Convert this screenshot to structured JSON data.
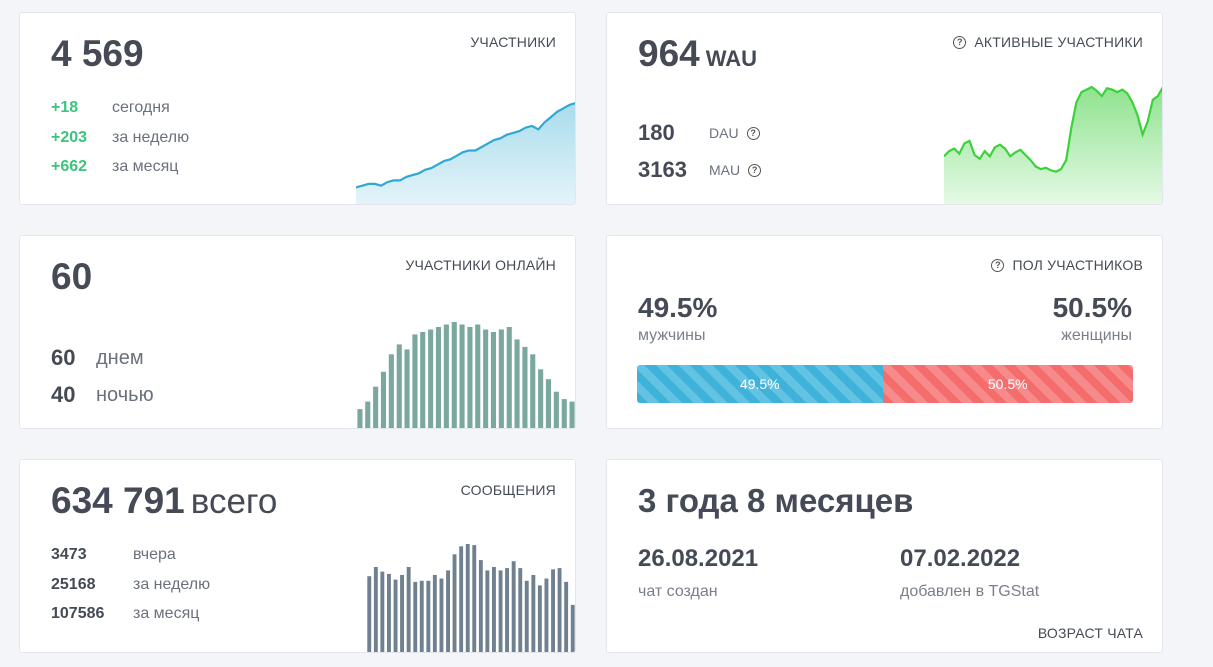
{
  "participants": {
    "label": "УЧАСТНИКИ",
    "total": "4 569",
    "rows": [
      {
        "value": "+18",
        "text": "сегодня"
      },
      {
        "value": "+203",
        "text": "за неделю"
      },
      {
        "value": "+662",
        "text": "за месяц"
      }
    ]
  },
  "active": {
    "label": "АКТИВНЫЕ УЧАСТНИКИ",
    "wau": "964",
    "wau_suffix": "WAU",
    "dau_value": "180",
    "dau_label": "DAU",
    "mau_value": "3163",
    "mau_label": "MAU"
  },
  "online": {
    "label": "УЧАСТНИКИ ОНЛАЙН",
    "total": "60",
    "day_value": "60",
    "day_label": "днем",
    "night_value": "40",
    "night_label": "ночью"
  },
  "gender": {
    "label": "ПОЛ УЧАСТНИКОВ",
    "male_percent": "49.5%",
    "male_label": "мужчины",
    "female_percent": "50.5%",
    "female_label": "женщины",
    "male_share": 49.5,
    "female_share": 50.5,
    "male_color": "#3fb2da",
    "female_color": "#f46c6c"
  },
  "messages": {
    "label": "СООБЩЕНИЯ",
    "total": "634 791",
    "total_suffix": "всего",
    "rows": [
      {
        "value": "3473",
        "text": "вчера"
      },
      {
        "value": "25168",
        "text": "за неделю"
      },
      {
        "value": "107586",
        "text": "за месяц"
      }
    ]
  },
  "age": {
    "label": "ВОЗРАСТ ЧАТА",
    "title": "3 года 8 месяцев",
    "created_date": "26.08.2021",
    "created_label": "чат создан",
    "added_date": "07.02.2022",
    "added_label": "добавлен в TGStat"
  },
  "chart_data": [
    {
      "type": "area",
      "values": [
        10,
        11,
        12,
        12,
        11,
        13,
        14,
        14,
        16,
        17,
        18,
        20,
        21,
        23,
        25,
        26,
        28,
        30,
        31,
        31,
        33,
        35,
        37,
        38,
        40,
        41,
        42,
        44,
        45,
        43,
        47,
        50,
        53,
        55,
        57,
        58
      ],
      "color": "#2fa9d4"
    },
    {
      "type": "area",
      "values": [
        38,
        42,
        44,
        40,
        48,
        50,
        39,
        36,
        42,
        38,
        45,
        47,
        44,
        38,
        41,
        43,
        39,
        35,
        30,
        28,
        29,
        27,
        26,
        28,
        35,
        60,
        80,
        88,
        90,
        92,
        89,
        85,
        91,
        90,
        88,
        90,
        87,
        80,
        70,
        55,
        65,
        82,
        85,
        92
      ],
      "color": "#3bd13b"
    },
    {
      "type": "bar",
      "values": [
        8,
        11,
        17,
        23,
        30,
        34,
        32,
        38,
        39,
        40,
        41,
        42,
        43,
        42,
        41,
        42,
        40,
        39,
        40,
        41,
        36,
        33,
        30,
        24,
        20,
        15,
        12,
        11
      ],
      "color": "#7aa89e"
    },
    {
      "type": "bar",
      "values": [
        66,
        74,
        70,
        68,
        63,
        67,
        74,
        61,
        62,
        62,
        67,
        64,
        71,
        85,
        92,
        94,
        93,
        80,
        71,
        74,
        71,
        73,
        79,
        73,
        62,
        67,
        58,
        64,
        72,
        73,
        61,
        41
      ],
      "color": "#6f8191"
    }
  ]
}
